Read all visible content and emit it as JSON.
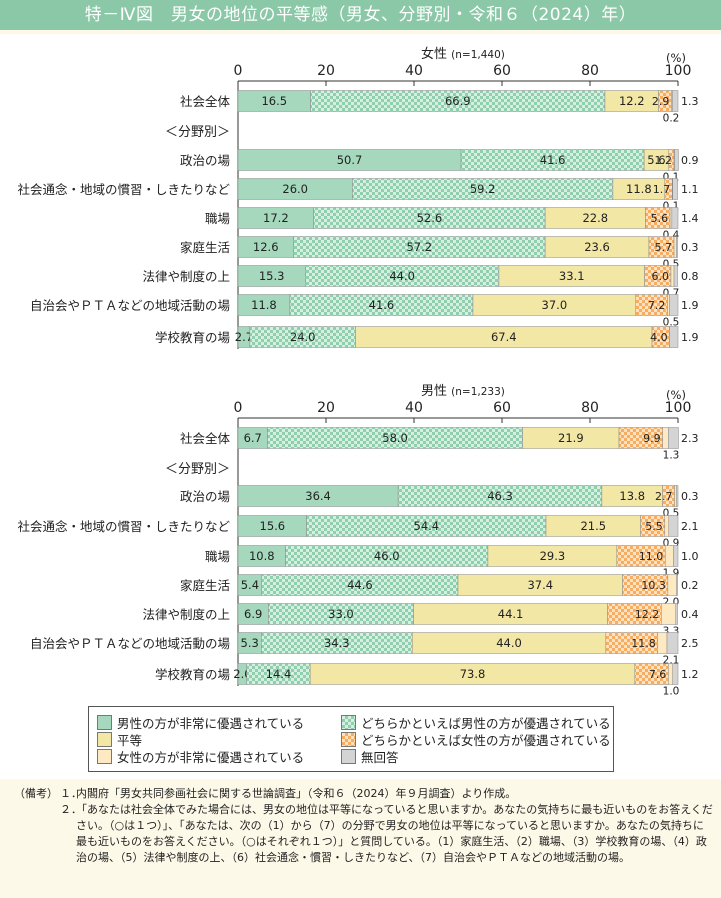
{
  "title": "特－Ⅳ図　男女の地位の平等感（男女、分野別・令和６（2024）年）",
  "colors": {
    "cat1": "#a5d8bd",
    "cat2_a": "#d6efe1",
    "cat2_b": "#8fcfae",
    "cat3": "#f2e7a5",
    "cat4_a": "#fde3c4",
    "cat4_b": "#f6ad5f",
    "cat5": "#fde9c2",
    "cat6": "#d4d4d4"
  },
  "legend": {
    "items": [
      "男性の方が非常に優遇されている",
      "どちらかといえば男性の方が優遇されている",
      "平等",
      "どちらかといえば女性の方が優遇されている",
      "女性の方が非常に優遇されている",
      "無回答"
    ]
  },
  "notes": {
    "label": "（備考）",
    "items": [
      {
        "num": "１．",
        "text": "内閣府「男女共同参画社会に関する世論調査」（令和６（2024）年９月調査）より作成。"
      },
      {
        "num": "２．",
        "text": "「あなたは社会全体でみた場合には、男女の地位は平等になっていると思いますか。あなたの気持ちに最も近いものをお答えください。（○は１つ）」、「あなたは、次の（1）から（7）の分野で男女の地位は平等になっていると思いますか。あなたの気持ちに最も近いものをお答えください。（○はそれぞれ１つ）」と質問している。（1）家庭生活、（2）職場、（3）学校教育の場、（4）政治の場、（5）法律や制度の上、（6）社会通念・慣習・しきたりなど、（7）自治会やＰＴＡなどの地域活動の場。"
      }
    ]
  },
  "chart_data": [
    {
      "type": "bar",
      "orientation": "horizontal",
      "stacked": true,
      "title": "女性",
      "n_label": "(n=1,440)",
      "unit": "(%)",
      "xlim": [
        0,
        100
      ],
      "ticks": [
        "0",
        "20",
        "40",
        "60",
        "80",
        "100"
      ],
      "group_label": "＜分野別＞",
      "categories": [
        "社会全体",
        "政治の場",
        "社会通念・地域の慣習・しきたりなど",
        "職場",
        "家庭生活",
        "法律や制度の上",
        "自治会やＰＴＡなどの地域活動の場",
        "学校教育の場"
      ],
      "series": [
        {
          "name": "男性の方が非常に優遇されている",
          "values": [
            16.5,
            50.7,
            26.0,
            17.2,
            12.6,
            15.3,
            11.8,
            2.7
          ]
        },
        {
          "name": "どちらかといえば男性の方が優遇されている",
          "values": [
            66.9,
            41.6,
            59.2,
            52.6,
            57.2,
            44.0,
            41.6,
            24.0
          ]
        },
        {
          "name": "平等",
          "values": [
            12.2,
            5.6,
            11.8,
            22.8,
            23.6,
            33.1,
            37.0,
            67.4
          ]
        },
        {
          "name": "どちらかといえば女性の方が優遇されている",
          "values": [
            2.9,
            1.2,
            1.7,
            5.6,
            5.7,
            6.0,
            7.2,
            4.0
          ]
        },
        {
          "name": "女性の方が非常に優遇されている",
          "values": [
            0.2,
            0.1,
            0.1,
            0.4,
            0.5,
            0.7,
            0.5,
            0.0
          ]
        },
        {
          "name": "無回答",
          "values": [
            1.3,
            0.9,
            1.1,
            1.4,
            0.3,
            0.8,
            1.9,
            1.9
          ]
        }
      ],
      "labels": [
        [
          "16.5",
          "66.9",
          "12.2",
          "2.9",
          "0.2",
          "1.3"
        ],
        [
          "50.7",
          "41.6",
          "5.6",
          "1.2",
          "0.1",
          "0.9"
        ],
        [
          "26.0",
          "59.2",
          "11.8",
          "1.7",
          "0.1",
          "1.1"
        ],
        [
          "17.2",
          "52.6",
          "22.8",
          "5.6",
          "0.4",
          "1.4"
        ],
        [
          "12.6",
          "57.2",
          "23.6",
          "5.7",
          "0.5",
          "0.3"
        ],
        [
          "15.3",
          "44.0",
          "33.1",
          "6.0",
          "0.7",
          "0.8"
        ],
        [
          "11.8",
          "41.6",
          "37.0",
          "7.2",
          "0.5",
          "1.9"
        ],
        [
          "2.7",
          "24.0",
          "67.4",
          "4.0",
          "",
          "1.9"
        ]
      ]
    },
    {
      "type": "bar",
      "orientation": "horizontal",
      "stacked": true,
      "title": "男性",
      "n_label": "(n=1,233)",
      "unit": "(%)",
      "xlim": [
        0,
        100
      ],
      "ticks": [
        "0",
        "20",
        "40",
        "60",
        "80",
        "100"
      ],
      "group_label": "＜分野別＞",
      "categories": [
        "社会全体",
        "政治の場",
        "社会通念・地域の慣習・しきたりなど",
        "職場",
        "家庭生活",
        "法律や制度の上",
        "自治会やＰＴＡなどの地域活動の場",
        "学校教育の場"
      ],
      "series": [
        {
          "name": "男性の方が非常に優遇されている",
          "values": [
            6.7,
            36.4,
            15.6,
            10.8,
            5.4,
            6.9,
            5.3,
            2.0
          ]
        },
        {
          "name": "どちらかといえば男性の方が優遇されている",
          "values": [
            58.0,
            46.3,
            54.4,
            46.0,
            44.6,
            33.0,
            34.3,
            14.4
          ]
        },
        {
          "name": "平等",
          "values": [
            21.9,
            13.8,
            21.5,
            29.3,
            37.4,
            44.1,
            44.0,
            73.8
          ]
        },
        {
          "name": "どちらかといえば女性の方が優遇されている",
          "values": [
            9.9,
            2.7,
            5.5,
            11.0,
            10.3,
            12.2,
            11.8,
            7.6
          ]
        },
        {
          "name": "女性の方が非常に優遇されている",
          "values": [
            1.3,
            0.5,
            0.9,
            1.9,
            2.0,
            3.3,
            2.1,
            1.0
          ]
        },
        {
          "name": "無回答",
          "values": [
            2.3,
            0.3,
            2.1,
            1.0,
            0.2,
            0.4,
            2.5,
            1.2
          ]
        }
      ],
      "labels": [
        [
          "6.7",
          "58.0",
          "21.9",
          "9.9",
          "1.3",
          "2.3"
        ],
        [
          "36.4",
          "46.3",
          "13.8",
          "2.7",
          "0.5",
          "0.3"
        ],
        [
          "15.6",
          "54.4",
          "21.5",
          "5.5",
          "0.9",
          "2.1"
        ],
        [
          "10.8",
          "46.0",
          "29.3",
          "11.0",
          "1.9",
          "1.0"
        ],
        [
          "5.4",
          "44.6",
          "37.4",
          "10.3",
          "2.0",
          "0.2"
        ],
        [
          "6.9",
          "33.0",
          "44.1",
          "12.2",
          "3.3",
          "0.4"
        ],
        [
          "5.3",
          "34.3",
          "44.0",
          "11.8",
          "2.1",
          "2.5"
        ],
        [
          "2.0",
          "14.4",
          "73.8",
          "7.6",
          "1.0",
          "1.2"
        ]
      ]
    }
  ]
}
